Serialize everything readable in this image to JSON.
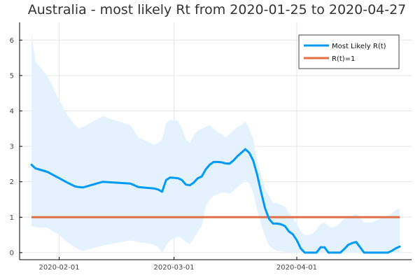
{
  "chart_data": {
    "type": "line",
    "title": "Australia - most likely Rt from 2020-01-25 to 2020-04-27",
    "xlabel": "",
    "ylabel": "",
    "xlim": [
      "2020-01-25",
      "2020-04-27"
    ],
    "ylim": [
      -0.2,
      6.5
    ],
    "x_ticks": [
      {
        "value": "2020-02-01",
        "label": "2020-02-01"
      },
      {
        "value": "2020-03-01",
        "label": "2020-03-01"
      },
      {
        "value": "2020-04-01",
        "label": "2020-04-01"
      }
    ],
    "y_ticks": [
      0,
      1,
      2,
      3,
      4,
      5,
      6
    ],
    "grid": true,
    "legend_position": "top-right",
    "colors": {
      "most_likely": "#009af9",
      "band": "#e3f2fe",
      "threshold": "#e26f46"
    },
    "series": [
      {
        "name": "Most Likely R(t)",
        "x": [
          "2020-01-25",
          "2020-01-26",
          "2020-01-29",
          "2020-02-01",
          "2020-02-03",
          "2020-02-05",
          "2020-02-06",
          "2020-02-07",
          "2020-02-12",
          "2020-02-19",
          "2020-02-21",
          "2020-02-24",
          "2020-02-25",
          "2020-02-26",
          "2020-02-27",
          "2020-02-28",
          "2020-02-29",
          "2020-03-02",
          "2020-03-03",
          "2020-03-04",
          "2020-03-05",
          "2020-03-06",
          "2020-03-07",
          "2020-03-08",
          "2020-03-09",
          "2020-03-10",
          "2020-03-11",
          "2020-03-12",
          "2020-03-13",
          "2020-03-14",
          "2020-03-15",
          "2020-03-16",
          "2020-03-17",
          "2020-03-18",
          "2020-03-19",
          "2020-03-20",
          "2020-03-21",
          "2020-03-22",
          "2020-03-23",
          "2020-03-24",
          "2020-03-25",
          "2020-03-26",
          "2020-03-27",
          "2020-03-28",
          "2020-03-29",
          "2020-03-30",
          "2020-03-31",
          "2020-04-01",
          "2020-04-02",
          "2020-04-03",
          "2020-04-04",
          "2020-04-05",
          "2020-04-06",
          "2020-04-07",
          "2020-04-08",
          "2020-04-09",
          "2020-04-10",
          "2020-04-11",
          "2020-04-12",
          "2020-04-13",
          "2020-04-14",
          "2020-04-15",
          "2020-04-16",
          "2020-04-17",
          "2020-04-18",
          "2020-04-19",
          "2020-04-20",
          "2020-04-21",
          "2020-04-22",
          "2020-04-23",
          "2020-04-24",
          "2020-04-25",
          "2020-04-26",
          "2020-04-27"
        ],
        "values": [
          2.48,
          2.38,
          2.28,
          2.1,
          1.98,
          1.87,
          1.85,
          1.84,
          2.0,
          1.95,
          1.85,
          1.82,
          1.81,
          1.78,
          1.72,
          2.05,
          2.12,
          2.1,
          2.05,
          1.92,
          1.9,
          1.98,
          2.1,
          2.15,
          2.35,
          2.48,
          2.56,
          2.56,
          2.55,
          2.52,
          2.51,
          2.6,
          2.72,
          2.82,
          2.92,
          2.82,
          2.6,
          2.2,
          1.7,
          1.25,
          0.95,
          0.82,
          0.82,
          0.8,
          0.75,
          0.6,
          0.52,
          0.35,
          0.12,
          0.0,
          0.0,
          0.0,
          0.0,
          0.15,
          0.15,
          0.0,
          0.0,
          0.0,
          0.0,
          0.1,
          0.22,
          0.27,
          0.3,
          0.15,
          0.0,
          0.0,
          0.0,
          0.0,
          0.0,
          0.0,
          0.0,
          0.05,
          0.12,
          0.17
        ]
      },
      {
        "name": "R(t)=1",
        "x": [
          "2020-01-25",
          "2020-04-27"
        ],
        "values": [
          1,
          1
        ]
      }
    ],
    "band": {
      "x": [
        "2020-01-25",
        "2020-01-26",
        "2020-01-29",
        "2020-02-01",
        "2020-02-03",
        "2020-02-05",
        "2020-02-06",
        "2020-02-07",
        "2020-02-12",
        "2020-02-19",
        "2020-02-21",
        "2020-02-24",
        "2020-02-25",
        "2020-02-26",
        "2020-02-27",
        "2020-02-28",
        "2020-02-29",
        "2020-03-02",
        "2020-03-03",
        "2020-03-04",
        "2020-03-05",
        "2020-03-06",
        "2020-03-07",
        "2020-03-08",
        "2020-03-09",
        "2020-03-10",
        "2020-03-11",
        "2020-03-12",
        "2020-03-13",
        "2020-03-14",
        "2020-03-15",
        "2020-03-16",
        "2020-03-17",
        "2020-03-18",
        "2020-03-19",
        "2020-03-20",
        "2020-03-21",
        "2020-03-22",
        "2020-03-23",
        "2020-03-24",
        "2020-03-25",
        "2020-03-26",
        "2020-03-27",
        "2020-03-28",
        "2020-03-29",
        "2020-03-30",
        "2020-03-31",
        "2020-04-01",
        "2020-04-02",
        "2020-04-03",
        "2020-04-04",
        "2020-04-05",
        "2020-04-06",
        "2020-04-07",
        "2020-04-08",
        "2020-04-09",
        "2020-04-10",
        "2020-04-11",
        "2020-04-12",
        "2020-04-13",
        "2020-04-14",
        "2020-04-15",
        "2020-04-16",
        "2020-04-17",
        "2020-04-18",
        "2020-04-19",
        "2020-04-20",
        "2020-04-21",
        "2020-04-22",
        "2020-04-23",
        "2020-04-24",
        "2020-04-25",
        "2020-04-26",
        "2020-04-27"
      ],
      "upper": [
        6.2,
        5.4,
        5.0,
        4.3,
        3.9,
        3.6,
        3.5,
        3.55,
        3.85,
        3.6,
        3.25,
        3.1,
        3.05,
        3.1,
        3.2,
        3.65,
        3.75,
        3.72,
        3.5,
        3.2,
        3.1,
        3.3,
        3.45,
        3.5,
        3.55,
        3.6,
        3.5,
        3.4,
        3.35,
        3.25,
        3.35,
        3.45,
        3.55,
        3.6,
        3.7,
        3.5,
        3.2,
        2.6,
        2.2,
        1.8,
        1.6,
        1.4,
        1.4,
        1.35,
        1.3,
        1.1,
        1.0,
        0.8,
        0.6,
        0.5,
        0.5,
        0.55,
        0.65,
        0.8,
        0.85,
        0.75,
        0.7,
        0.75,
        0.85,
        0.95,
        1.0,
        1.05,
        1.1,
        1.0,
        0.85,
        0.85,
        0.85,
        0.9,
        0.95,
        1.0,
        1.05,
        1.1,
        1.2,
        1.25
      ],
      "lower": [
        0.75,
        0.72,
        0.7,
        0.5,
        0.3,
        0.15,
        0.08,
        0.05,
        0.2,
        0.35,
        0.3,
        0.25,
        0.22,
        0.15,
        0.0,
        0.2,
        0.35,
        0.45,
        0.4,
        0.3,
        0.25,
        0.4,
        0.6,
        0.75,
        1.3,
        1.5,
        1.6,
        1.65,
        1.7,
        1.7,
        1.65,
        1.75,
        1.85,
        1.95,
        2.05,
        1.95,
        1.7,
        1.2,
        0.8,
        0.45,
        0.2,
        0.1,
        0.05,
        0.05,
        0.02,
        0.0,
        0.0,
        0.0,
        0.0,
        0.0,
        0.0,
        0.0,
        0.0,
        0.0,
        0.0,
        0.0,
        0.0,
        0.0,
        0.0,
        0.0,
        0.0,
        0.0,
        0.0,
        0.0,
        0.0,
        0.0,
        0.0,
        0.0,
        0.0,
        0.0,
        0.0,
        0.0,
        0.0,
        0.0
      ]
    }
  }
}
